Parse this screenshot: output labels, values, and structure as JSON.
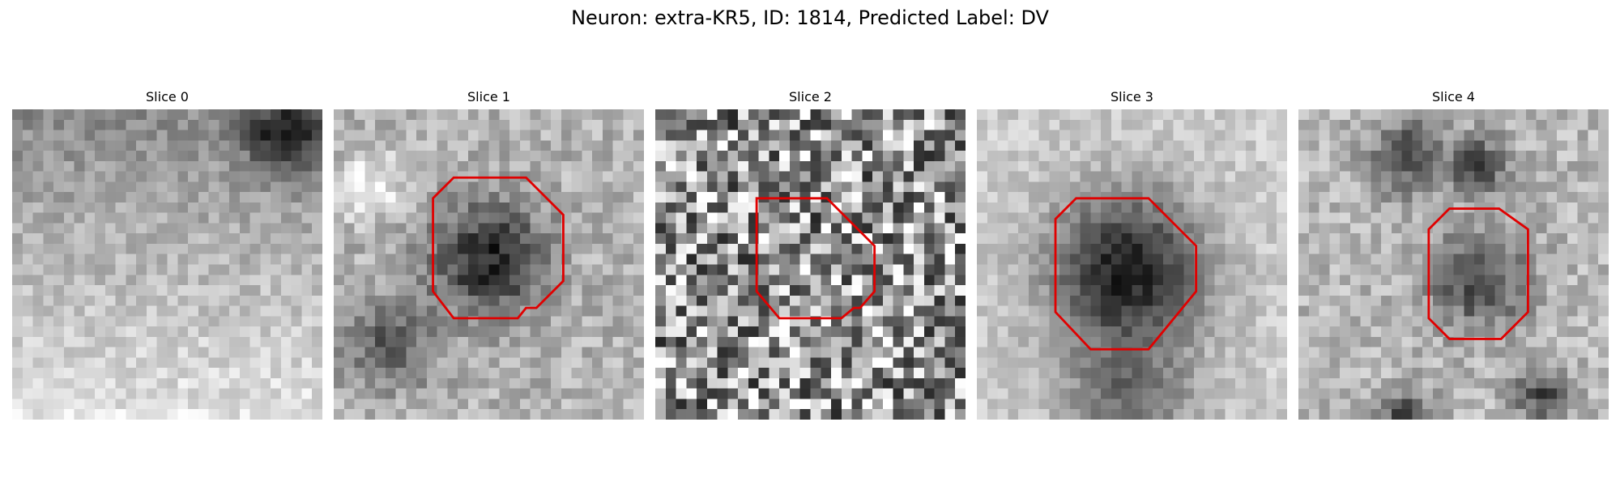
{
  "title": "Neuron: extra-KR5, ID: 1814, Predicted Label: DV",
  "outline_color": "#e00000",
  "panels": [
    {
      "title": "Slice 0"
    },
    {
      "title": "Slice 1"
    },
    {
      "title": "Slice 2"
    },
    {
      "title": "Slice 3"
    },
    {
      "title": "Slice 4"
    }
  ]
}
